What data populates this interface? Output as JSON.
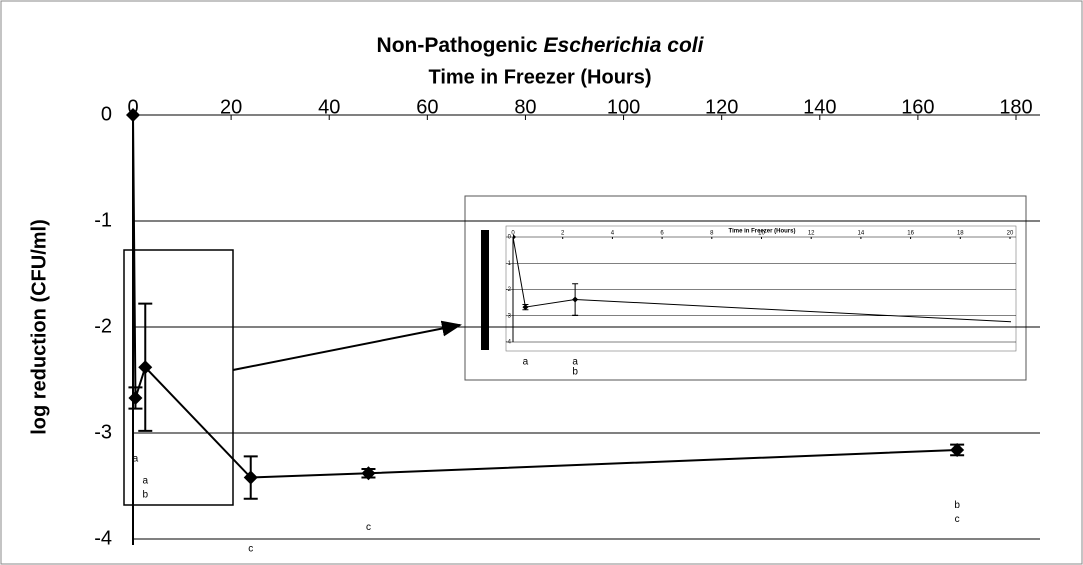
{
  "chart_data": [
    {
      "type": "line",
      "title": [
        "Non-Pathogenic",
        "Escherichia coli"
      ],
      "x_label": "Time in Freezer (Hours)",
      "y_label": "log reduction (CFU/ml)",
      "x": [
        0,
        0.5,
        2.5,
        24,
        48,
        168
      ],
      "values": [
        0,
        -2.67,
        -2.38,
        -3.42,
        -3.38,
        -3.16
      ],
      "errors": [
        0,
        0.1,
        0.6,
        0.2,
        0.04,
        0.05
      ],
      "letters": [
        [],
        [
          "a"
        ],
        [
          "a",
          "b"
        ],
        [
          "c"
        ],
        [
          "c"
        ],
        [
          "b",
          "c"
        ]
      ],
      "color": "#000000",
      "xlim": [
        0,
        180
      ],
      "xticks": [
        0,
        20,
        40,
        60,
        80,
        100,
        120,
        140,
        160,
        180
      ],
      "ylim": [
        -4,
        0
      ],
      "yticks": [
        0,
        -1,
        -2,
        -3,
        -4
      ],
      "grid": true
    },
    {
      "type": "line",
      "title": "Time in Freezer (Hours)",
      "x": [
        0,
        0.5,
        2.5,
        24
      ],
      "values": [
        0,
        -2.67,
        -2.38,
        -3.42
      ],
      "errors": [
        0,
        0.1,
        0.6,
        0.2
      ],
      "letters": [
        [],
        [
          "a"
        ],
        [
          "a",
          "b"
        ],
        []
      ],
      "color": "#000000",
      "xlim": [
        0,
        20
      ],
      "xticks": [
        0,
        2,
        4,
        6,
        8,
        10,
        12,
        14,
        16,
        18,
        20
      ],
      "ylim": [
        -4,
        0
      ],
      "yticks": [
        0,
        -1,
        -2,
        -3,
        -4
      ],
      "grid": true
    }
  ]
}
